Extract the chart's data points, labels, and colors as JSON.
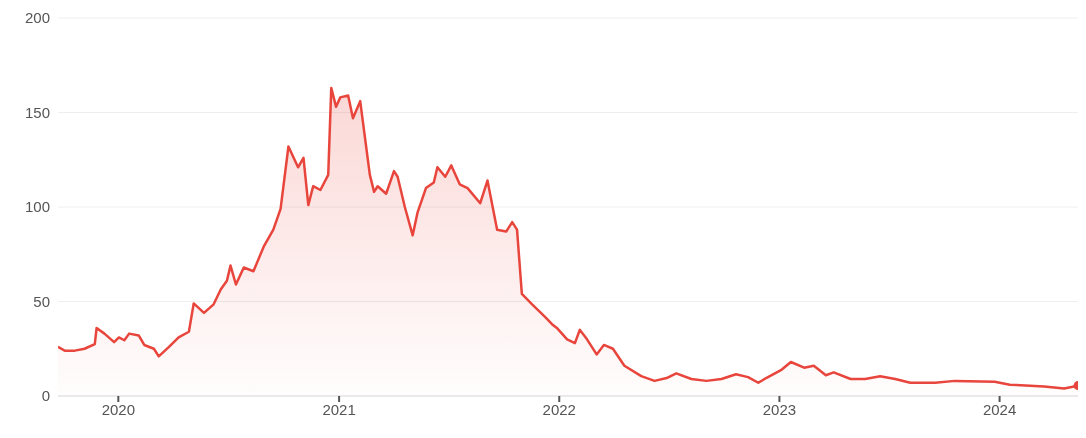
{
  "chart_data": {
    "type": "area",
    "xlim": [
      "2019-09-23",
      "2024-05-10"
    ],
    "xticks": [
      {
        "value": "2020-01-01",
        "label": "2020"
      },
      {
        "value": "2021-01-01",
        "label": "2021"
      },
      {
        "value": "2022-01-01",
        "label": "2022"
      },
      {
        "value": "2023-01-01",
        "label": "2023"
      },
      {
        "value": "2024-01-01",
        "label": "2024"
      }
    ],
    "ylim": [
      0,
      200
    ],
    "yticks": [
      0,
      50,
      100,
      150,
      200
    ],
    "grid": "y",
    "series": [
      {
        "color": "#e8453c",
        "x": [
          "2019-09-23",
          "2019-10-04",
          "2019-10-21",
          "2019-11-06",
          "2019-11-23",
          "2019-11-26",
          "2019-12-09",
          "2019-12-25",
          "2020-01-02",
          "2020-01-11",
          "2020-01-19",
          "2020-02-04",
          "2020-02-13",
          "2020-02-29",
          "2020-03-08",
          "2020-03-25",
          "2020-04-10",
          "2020-04-27",
          "2020-05-05",
          "2020-05-22",
          "2020-06-07",
          "2020-06-19",
          "2020-06-29",
          "2020-07-05",
          "2020-07-14",
          "2020-07-27",
          "2020-08-12",
          "2020-08-29",
          "2020-09-14",
          "2020-09-26",
          "2020-10-09",
          "2020-10-25",
          "2020-11-03",
          "2020-11-11",
          "2020-11-19",
          "2020-12-01",
          "2020-12-14",
          "2020-12-19",
          "2020-12-27",
          "2021-01-03",
          "2021-01-16",
          "2021-01-24",
          "2021-02-05",
          "2021-02-21",
          "2021-02-28",
          "2021-03-06",
          "2021-03-20",
          "2021-04-02",
          "2021-04-08",
          "2021-04-20",
          "2021-05-03",
          "2021-05-11",
          "2021-05-25",
          "2021-06-07",
          "2021-06-13",
          "2021-06-26",
          "2021-07-06",
          "2021-07-20",
          "2021-08-02",
          "2021-08-23",
          "2021-09-04",
          "2021-09-20",
          "2021-10-05",
          "2021-10-15",
          "2021-10-23",
          "2021-10-31",
          "2021-11-17",
          "2021-12-08",
          "2021-12-20",
          "2021-12-28",
          "2022-01-14",
          "2022-01-27",
          "2022-02-04",
          "2022-02-16",
          "2022-03-04",
          "2022-03-16",
          "2022-03-31",
          "2022-04-19",
          "2022-05-17",
          "2022-06-08",
          "2022-06-28",
          "2022-07-14",
          "2022-08-08",
          "2022-09-02",
          "2022-09-27",
          "2022-10-21",
          "2022-11-10",
          "2022-11-27",
          "2022-12-10",
          "2023-01-05",
          "2023-01-20",
          "2023-02-11",
          "2023-02-27",
          "2023-03-19",
          "2023-04-01",
          "2023-04-29",
          "2023-05-23",
          "2023-06-17",
          "2023-07-12",
          "2023-08-06",
          "2023-09-16",
          "2023-10-19",
          "2023-12-24",
          "2024-01-18",
          "2024-03-15",
          "2024-04-17",
          "2024-05-10"
        ],
        "values": [
          26,
          24,
          24,
          25,
          27.5,
          36,
          33,
          28.5,
          31,
          29.5,
          33,
          32,
          27,
          25,
          21,
          26,
          31,
          34,
          49,
          44,
          48.5,
          56.5,
          61,
          69,
          59,
          68,
          66,
          79,
          88,
          99,
          132,
          121,
          126,
          101,
          111,
          109,
          117,
          163,
          153,
          158,
          159,
          147,
          156,
          117,
          108,
          111,
          107,
          119,
          116,
          100,
          85,
          97,
          110,
          113,
          121,
          116,
          122,
          112,
          110,
          102,
          114,
          88,
          87,
          92,
          88,
          54,
          48.5,
          42,
          38,
          36,
          30,
          28,
          35,
          30,
          22,
          27,
          25,
          16,
          10.5,
          8,
          9.5,
          12,
          9,
          8,
          9,
          11.5,
          10,
          7,
          9.5,
          14,
          18,
          15,
          16,
          11,
          12.5,
          9,
          9,
          10.5,
          9,
          7,
          7,
          8,
          7.5,
          6,
          5,
          4,
          5.5
        ]
      },
      {
        "type": "scatter",
        "color": "#e8453c",
        "x": [
          "2024-05-10"
        ],
        "values": [
          5.5
        ]
      }
    ]
  }
}
